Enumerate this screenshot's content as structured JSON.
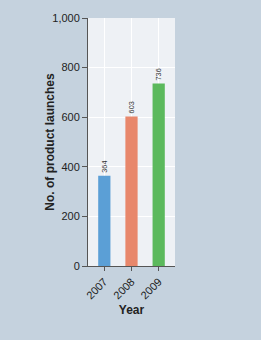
{
  "chart_data": {
    "type": "bar",
    "xlabel": "Year",
    "ylabel": "No. of product launches",
    "categories": [
      "2007",
      "2008",
      "2009"
    ],
    "values": [
      364,
      603,
      736
    ],
    "colors": [
      "#5b9fd6",
      "#e8876b",
      "#5bb95c"
    ],
    "ylim": [
      0,
      1000
    ],
    "yticks": [
      0,
      200,
      400,
      600,
      800,
      {
        "value": 1000,
        "label": "1,000"
      }
    ],
    "grid": true,
    "data_labels": true
  }
}
